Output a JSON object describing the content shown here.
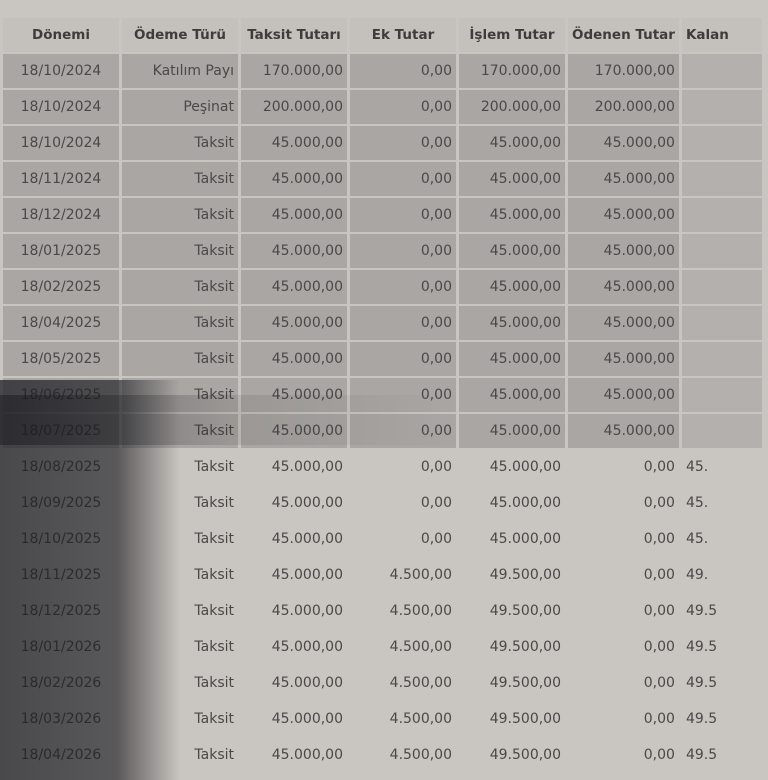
{
  "table": {
    "columns": [
      "Dönemi",
      "Ödeme Türü",
      "Taksit Tutarı",
      "Ek Tutar",
      "İşlem Tutar",
      "Ödenen Tutar",
      "Kalan"
    ],
    "rows": [
      {
        "status": "paid",
        "cells": [
          "18/10/2024",
          "Katılım Payı",
          "170.000,00",
          "0,00",
          "170.000,00",
          "170.000,00",
          ""
        ]
      },
      {
        "status": "paid",
        "cells": [
          "18/10/2024",
          "Peşinat",
          "200.000,00",
          "0,00",
          "200.000,00",
          "200.000,00",
          ""
        ]
      },
      {
        "status": "paid",
        "cells": [
          "18/10/2024",
          "Taksit",
          "45.000,00",
          "0,00",
          "45.000,00",
          "45.000,00",
          ""
        ]
      },
      {
        "status": "paid",
        "cells": [
          "18/11/2024",
          "Taksit",
          "45.000,00",
          "0,00",
          "45.000,00",
          "45.000,00",
          ""
        ]
      },
      {
        "status": "paid",
        "cells": [
          "18/12/2024",
          "Taksit",
          "45.000,00",
          "0,00",
          "45.000,00",
          "45.000,00",
          ""
        ]
      },
      {
        "status": "paid",
        "cells": [
          "18/01/2025",
          "Taksit",
          "45.000,00",
          "0,00",
          "45.000,00",
          "45.000,00",
          ""
        ]
      },
      {
        "status": "paid",
        "cells": [
          "18/02/2025",
          "Taksit",
          "45.000,00",
          "0,00",
          "45.000,00",
          "45.000,00",
          ""
        ]
      },
      {
        "status": "paid",
        "cells": [
          "18/04/2025",
          "Taksit",
          "45.000,00",
          "0,00",
          "45.000,00",
          "45.000,00",
          ""
        ]
      },
      {
        "status": "paid",
        "cells": [
          "18/05/2025",
          "Taksit",
          "45.000,00",
          "0,00",
          "45.000,00",
          "45.000,00",
          ""
        ]
      },
      {
        "status": "paid",
        "cells": [
          "18/06/2025",
          "Taksit",
          "45.000,00",
          "0,00",
          "45.000,00",
          "45.000,00",
          ""
        ]
      },
      {
        "status": "paid",
        "cells": [
          "18/07/2025",
          "Taksit",
          "45.000,00",
          "0,00",
          "45.000,00",
          "45.000,00",
          ""
        ]
      },
      {
        "status": "open",
        "cells": [
          "18/08/2025",
          "Taksit",
          "45.000,00",
          "0,00",
          "45.000,00",
          "0,00",
          "45."
        ]
      },
      {
        "status": "open",
        "cells": [
          "18/09/2025",
          "Taksit",
          "45.000,00",
          "0,00",
          "45.000,00",
          "0,00",
          "45."
        ]
      },
      {
        "status": "open",
        "cells": [
          "18/10/2025",
          "Taksit",
          "45.000,00",
          "0,00",
          "45.000,00",
          "0,00",
          "45."
        ]
      },
      {
        "status": "open",
        "cells": [
          "18/11/2025",
          "Taksit",
          "45.000,00",
          "4.500,00",
          "49.500,00",
          "0,00",
          "49."
        ]
      },
      {
        "status": "open",
        "cells": [
          "18/12/2025",
          "Taksit",
          "45.000,00",
          "4.500,00",
          "49.500,00",
          "0,00",
          "49.5"
        ]
      },
      {
        "status": "open",
        "cells": [
          "18/01/2026",
          "Taksit",
          "45.000,00",
          "4.500,00",
          "49.500,00",
          "0,00",
          "49.5"
        ]
      },
      {
        "status": "open",
        "cells": [
          "18/02/2026",
          "Taksit",
          "45.000,00",
          "4.500,00",
          "49.500,00",
          "0,00",
          "49.5"
        ]
      },
      {
        "status": "open",
        "cells": [
          "18/03/2026",
          "Taksit",
          "45.000,00",
          "4.500,00",
          "49.500,00",
          "0,00",
          "49.5"
        ]
      },
      {
        "status": "open",
        "cells": [
          "18/04/2026",
          "Taksit",
          "45.000,00",
          "4.500,00",
          "49.500,00",
          "0,00",
          "49.5"
        ]
      }
    ]
  },
  "colors": {
    "paid_row": "#a9a6a3",
    "open_row": "#c9c5c0",
    "text": "#4a4848"
  }
}
